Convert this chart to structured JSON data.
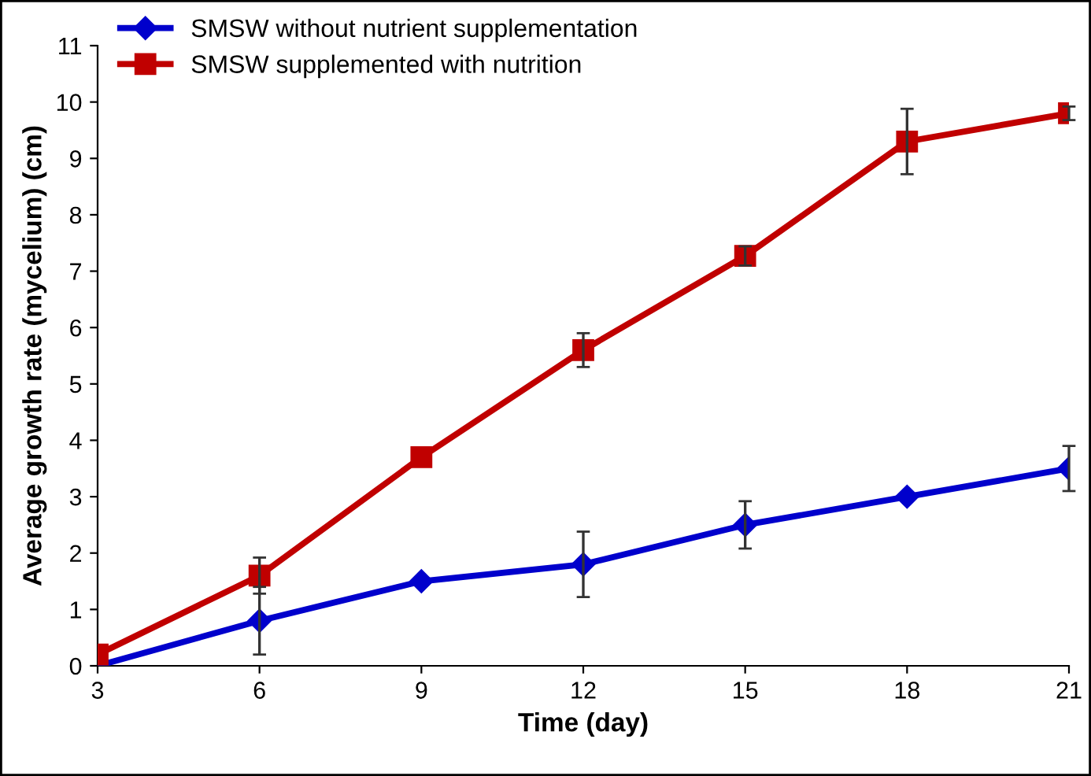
{
  "chart_data": {
    "type": "line",
    "xlabel": "Time (day)",
    "ylabel": "Average growth rate (mycelium) (cm)",
    "x": [
      3,
      6,
      9,
      12,
      15,
      18,
      21
    ],
    "series": [
      {
        "name": "SMSW without nutrient supplementation",
        "color": "#0000cc",
        "marker": "diamond",
        "values": [
          0,
          0.8,
          1.5,
          1.8,
          2.5,
          3.0,
          3.5
        ],
        "errors": [
          null,
          0.6,
          null,
          0.58,
          0.42,
          null,
          0.4
        ]
      },
      {
        "name": "SMSW supplemented with nutrition",
        "color": "#c00000",
        "marker": "square",
        "values": [
          0.2,
          1.6,
          3.7,
          5.6,
          7.27,
          9.3,
          9.8
        ],
        "errors": [
          null,
          0.32,
          null,
          0.3,
          0.17,
          0.58,
          0.12
        ]
      }
    ],
    "xlim": [
      3,
      21
    ],
    "xticks": [
      3,
      6,
      9,
      12,
      15,
      18,
      21
    ],
    "ylim": [
      0,
      11
    ],
    "yticks": [
      0,
      1,
      2,
      3,
      4,
      5,
      6,
      7,
      8,
      9,
      10,
      11
    ],
    "grid": false,
    "legend": "top left",
    "line_style": "solid"
  }
}
